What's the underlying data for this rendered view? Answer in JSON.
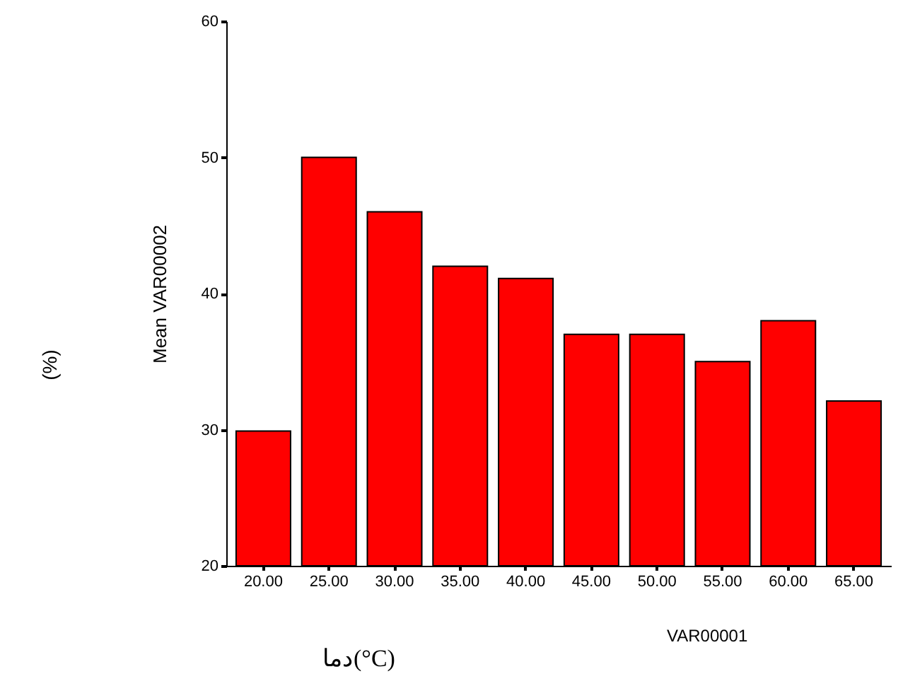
{
  "chart_data": {
    "type": "bar",
    "categories": [
      "20.00",
      "25.00",
      "30.00",
      "35.00",
      "40.00",
      "45.00",
      "50.00",
      "55.00",
      "60.00",
      "65.00"
    ],
    "values": [
      29.9,
      50,
      46,
      42,
      41.1,
      37,
      37,
      35,
      38,
      32.1
    ],
    "color": "#ff0000",
    "ylim": [
      20,
      60
    ],
    "yticks": [
      20,
      30,
      40,
      50,
      60
    ],
    "grid": false,
    "xlabel": "VAR00001",
    "ylabel": "Mean VAR00002",
    "annotations": [
      "(%)",
      "دما(°C)"
    ]
  }
}
